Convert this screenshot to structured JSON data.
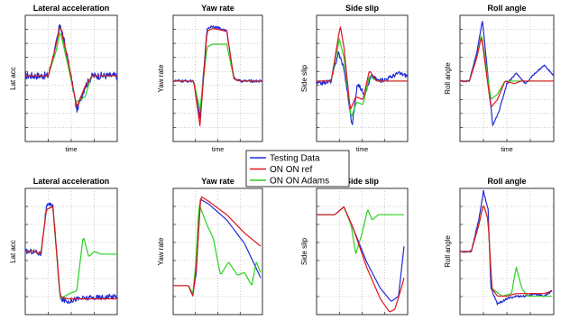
{
  "legend": {
    "entries": [
      {
        "name": "Testing Data",
        "color": "#1f2bd6"
      },
      {
        "name": "ON ON ref",
        "color": "#e0141e"
      },
      {
        "name": "ON ON Adams",
        "color": "#27d21f"
      }
    ]
  },
  "chart_data": [
    {
      "type": "line",
      "title": "Lateral acceleration",
      "ylabel": "Lat acc",
      "xlabel": "time",
      "xlim": [
        0,
        10
      ],
      "ylim": [
        -1.2,
        1.2
      ],
      "grid": true,
      "xticks": 3,
      "yticks": 8,
      "series": [
        {
          "name": "Testing Data",
          "noise": 0.07,
          "x": [
            0,
            2.5,
            3.3,
            3.8,
            4.7,
            5.6,
            6.5,
            7.3,
            10
          ],
          "y": [
            0.05,
            0.05,
            0.6,
            1.05,
            0.3,
            -0.6,
            -0.15,
            0.05,
            0.05
          ]
        },
        {
          "name": "ON ON ref",
          "x": [
            0,
            2.5,
            3.3,
            3.8,
            4.7,
            5.6,
            6.5,
            7.3,
            10
          ],
          "y": [
            0.05,
            0.05,
            0.6,
            1.0,
            0.3,
            -0.55,
            -0.15,
            0.05,
            0.05
          ]
        },
        {
          "name": "ON ON Adams",
          "x": [
            0,
            2.5,
            3.4,
            3.8,
            4.7,
            5.5,
            6.5,
            7.2,
            10
          ],
          "y": [
            0.05,
            0.05,
            0.55,
            0.9,
            0.2,
            -0.45,
            -0.35,
            0.05,
            0.05
          ]
        }
      ]
    },
    {
      "type": "line",
      "title": "Yaw rate",
      "ylabel": "Yaw rate",
      "xlabel": "time",
      "xlim": [
        0,
        10
      ],
      "ylim": [
        -1.2,
        1.2
      ],
      "grid": true,
      "xticks": 3,
      "yticks": 8,
      "series": [
        {
          "name": "Testing Data",
          "noise": 0.025,
          "x": [
            0,
            2.3,
            3.0,
            3.8,
            4.4,
            6.0,
            6.8,
            7.5,
            10
          ],
          "y": [
            -0.05,
            -0.05,
            -0.75,
            0.95,
            1.0,
            0.9,
            0,
            -0.05,
            -0.05
          ]
        },
        {
          "name": "ON ON ref",
          "x": [
            0,
            2.3,
            3.0,
            3.8,
            4.4,
            6.0,
            6.8,
            7.5,
            10
          ],
          "y": [
            -0.05,
            -0.05,
            -0.9,
            0.9,
            0.95,
            0.9,
            0,
            -0.05,
            -0.05
          ]
        },
        {
          "name": "ON ON Adams",
          "x": [
            0,
            2.3,
            3.0,
            3.8,
            4.4,
            6.0,
            6.8,
            7.5,
            10
          ],
          "y": [
            -0.05,
            -0.05,
            -0.6,
            0.6,
            0.65,
            0.65,
            0,
            -0.05,
            -0.05
          ]
        }
      ]
    },
    {
      "type": "line",
      "title": "Side slip",
      "ylabel": "Side slip",
      "xlabel": "time",
      "xlim": [
        0,
        10
      ],
      "ylim": [
        -1.2,
        1.2
      ],
      "grid": true,
      "xticks": 3,
      "yticks": 8,
      "series": [
        {
          "name": "Testing Data",
          "noise": 0.04,
          "x": [
            0,
            1.6,
            2.4,
            3.0,
            3.9,
            4.5,
            5.3,
            6.0,
            6.9,
            7.8,
            9.0,
            10
          ],
          "y": [
            -0.1,
            -0.05,
            0.5,
            0.2,
            -0.9,
            -0.1,
            -0.3,
            0.05,
            -0.05,
            0,
            0.1,
            0.05
          ]
        },
        {
          "name": "ON ON ref",
          "x": [
            0,
            1.6,
            2.6,
            3.0,
            3.7,
            4.3,
            5.1,
            5.8,
            6.6,
            7.5,
            10
          ],
          "y": [
            -0.05,
            -0.05,
            1.0,
            0.6,
            -0.6,
            -0.35,
            -0.4,
            0.15,
            -0.05,
            -0.05,
            -0.05
          ]
        },
        {
          "name": "ON ON Adams",
          "x": [
            0,
            1.6,
            2.5,
            3.0,
            3.8,
            4.4,
            5.1,
            5.8,
            6.6,
            7.5,
            10
          ],
          "y": [
            -0.05,
            -0.05,
            0.75,
            0.4,
            -0.75,
            -0.45,
            -0.5,
            0.05,
            -0.05,
            -0.05,
            -0.05
          ]
        }
      ]
    },
    {
      "type": "line",
      "title": "Roll angle",
      "ylabel": "Roll angle",
      "xlabel": "time",
      "xlim": [
        0,
        10
      ],
      "ylim": [
        -1.2,
        1.2
      ],
      "grid": true,
      "xticks": 3,
      "yticks": 8,
      "series": [
        {
          "name": "Testing Data",
          "noise": 0.015,
          "x": [
            0,
            1.0,
            1.8,
            2.4,
            3.5,
            4.2,
            5.0,
            6.0,
            7.0,
            8.0,
            9.0,
            10
          ],
          "y": [
            -0.05,
            -0.05,
            0.5,
            1.1,
            -0.9,
            -0.6,
            -0.1,
            0.1,
            -0.1,
            0.1,
            0.25,
            0.05
          ]
        },
        {
          "name": "ON ON ref",
          "x": [
            0,
            1.0,
            1.8,
            2.3,
            3.3,
            4.0,
            4.8,
            5.8,
            6.5,
            10
          ],
          "y": [
            -0.05,
            -0.05,
            0.4,
            0.8,
            -0.55,
            -0.4,
            -0.05,
            -0.1,
            -0.05,
            -0.05
          ]
        },
        {
          "name": "ON ON Adams",
          "x": [
            0,
            1.0,
            1.8,
            2.3,
            3.3,
            4.0,
            4.8,
            5.8,
            6.5,
            10
          ],
          "y": [
            -0.05,
            -0.05,
            0.4,
            0.85,
            -0.4,
            -0.3,
            -0.05,
            -0.05,
            -0.05,
            -0.05
          ]
        }
      ]
    },
    {
      "type": "line",
      "title": "Lateral acceleration",
      "ylabel": "Lat acc",
      "xlabel": "",
      "xlim": [
        0,
        10
      ],
      "ylim": [
        -1.2,
        1.2
      ],
      "grid": true,
      "xticks": 3,
      "yticks": 6,
      "series": [
        {
          "name": "Testing Data",
          "noise": 0.05,
          "x": [
            0,
            1.0,
            1.7,
            2.3,
            3.0,
            3.8,
            4.6,
            5.5,
            10
          ],
          "y": [
            0.0,
            0.0,
            -0.05,
            0.85,
            0.9,
            -0.9,
            -0.95,
            -0.9,
            -0.85
          ]
        },
        {
          "name": "ON ON ref",
          "x": [
            0,
            1.0,
            1.7,
            2.3,
            3.0,
            3.8,
            4.6,
            10
          ],
          "y": [
            0.0,
            0.0,
            -0.05,
            0.8,
            0.85,
            -0.85,
            -0.9,
            -0.9
          ]
        },
        {
          "name": "ON ON Adams",
          "x": [
            0,
            1.0,
            1.7,
            2.3,
            3.0,
            3.8,
            4.8,
            5.6,
            6.3,
            6.9,
            7.5,
            8.2,
            10
          ],
          "y": [
            0.0,
            0.0,
            -0.05,
            0.8,
            0.85,
            -0.9,
            -0.8,
            -0.75,
            0.3,
            -0.1,
            0.0,
            -0.05,
            -0.05
          ]
        }
      ]
    },
    {
      "type": "line",
      "title": "Yaw rate",
      "ylabel": "Yaw rate",
      "xlabel": "",
      "xlim": [
        0,
        10
      ],
      "ylim": [
        -1.2,
        1.2
      ],
      "grid": true,
      "xticks": 3,
      "yticks": 6,
      "series": [
        {
          "name": "Testing Data",
          "noise": 0.0,
          "x": [
            0,
            1.7,
            2.2,
            2.6,
            3.0,
            4.0,
            6.0,
            8.0,
            9.8
          ],
          "y": [
            -0.65,
            -0.65,
            -0.8,
            -0.4,
            1.0,
            0.9,
            0.6,
            0.15,
            -0.5
          ]
        },
        {
          "name": "ON ON ref",
          "x": [
            0,
            1.7,
            2.2,
            2.6,
            3.1,
            4.0,
            6.0,
            8.0,
            9.8
          ],
          "y": [
            -0.65,
            -0.65,
            -0.85,
            -0.3,
            1.05,
            0.95,
            0.7,
            0.35,
            0.1
          ]
        },
        {
          "name": "ON ON Adams",
          "x": [
            0,
            1.7,
            2.2,
            2.5,
            2.9,
            3.8,
            4.5,
            5.3,
            6.2,
            7.2,
            8.0,
            8.8,
            9.3,
            9.8
          ],
          "y": [
            -0.65,
            -0.65,
            -0.8,
            -0.3,
            0.9,
            0.5,
            0.25,
            -0.45,
            -0.2,
            -0.45,
            -0.4,
            -0.65,
            -0.2,
            -0.4
          ]
        }
      ]
    },
    {
      "type": "line",
      "title": "Side slip",
      "ylabel": "Side slip",
      "xlabel": "",
      "xlim": [
        0,
        10
      ],
      "ylim": [
        -1.2,
        1.2
      ],
      "grid": true,
      "xticks": 3,
      "yticks": 6,
      "series": [
        {
          "name": "Testing Data",
          "noise": 0.0,
          "x": [
            0,
            2.0,
            3.0,
            4.0,
            5.5,
            7.0,
            8.2,
            9.0,
            9.6
          ],
          "y": [
            0.7,
            0.7,
            0.85,
            0.45,
            -0.2,
            -0.7,
            -0.95,
            -0.85,
            0.1
          ]
        },
        {
          "name": "ON ON ref",
          "x": [
            0,
            2.0,
            3.0,
            4.0,
            5.5,
            7.0,
            8.0,
            8.6,
            9.3,
            9.6
          ],
          "y": [
            0.7,
            0.7,
            0.85,
            0.45,
            -0.3,
            -0.9,
            -1.15,
            -1.1,
            -0.7,
            -0.5
          ]
        },
        {
          "name": "ON ON Adams",
          "x": [
            0,
            2.0,
            3.0,
            3.8,
            4.3,
            5.0,
            5.6,
            6.1,
            6.8,
            7.5,
            9.6
          ],
          "y": [
            0.7,
            0.7,
            0.85,
            0.5,
            -0.05,
            0.35,
            0.8,
            0.6,
            0.7,
            0.7,
            0.7
          ]
        }
      ]
    },
    {
      "type": "line",
      "title": "Roll angle",
      "ylabel": "Roll angle",
      "xlabel": "",
      "xlim": [
        0,
        10
      ],
      "ylim": [
        -1.2,
        1.2
      ],
      "grid": true,
      "xticks": 3,
      "yticks": 6,
      "series": [
        {
          "name": "Testing Data",
          "noise": 0.02,
          "x": [
            0,
            1.2,
            2.0,
            2.5,
            3.0,
            3.3,
            4.0,
            5.0,
            6.0,
            7.0,
            8.0,
            9.0,
            9.8
          ],
          "y": [
            0.0,
            0.0,
            0.6,
            1.15,
            0.8,
            -0.7,
            -1.0,
            -0.9,
            -0.85,
            -0.85,
            -0.8,
            -0.85,
            -0.75
          ]
        },
        {
          "name": "ON ON ref",
          "x": [
            0,
            1.2,
            2.0,
            2.5,
            3.0,
            3.4,
            4.0,
            5.0,
            6.0,
            7.0,
            8.0,
            9.0,
            9.8
          ],
          "y": [
            0.0,
            0.0,
            0.5,
            0.9,
            0.6,
            -0.7,
            -0.85,
            -0.85,
            -0.8,
            -0.8,
            -0.8,
            -0.8,
            -0.75
          ]
        },
        {
          "name": "ON ON Adams",
          "x": [
            0,
            1.2,
            2.0,
            2.5,
            3.0,
            3.4,
            4.5,
            5.5,
            6.0,
            6.6,
            7.2,
            8.0,
            9.8
          ],
          "y": [
            0.0,
            0.0,
            0.5,
            0.9,
            0.6,
            -0.7,
            -0.85,
            -0.8,
            -0.3,
            -0.7,
            -0.85,
            -0.85,
            -0.85
          ]
        }
      ]
    }
  ]
}
